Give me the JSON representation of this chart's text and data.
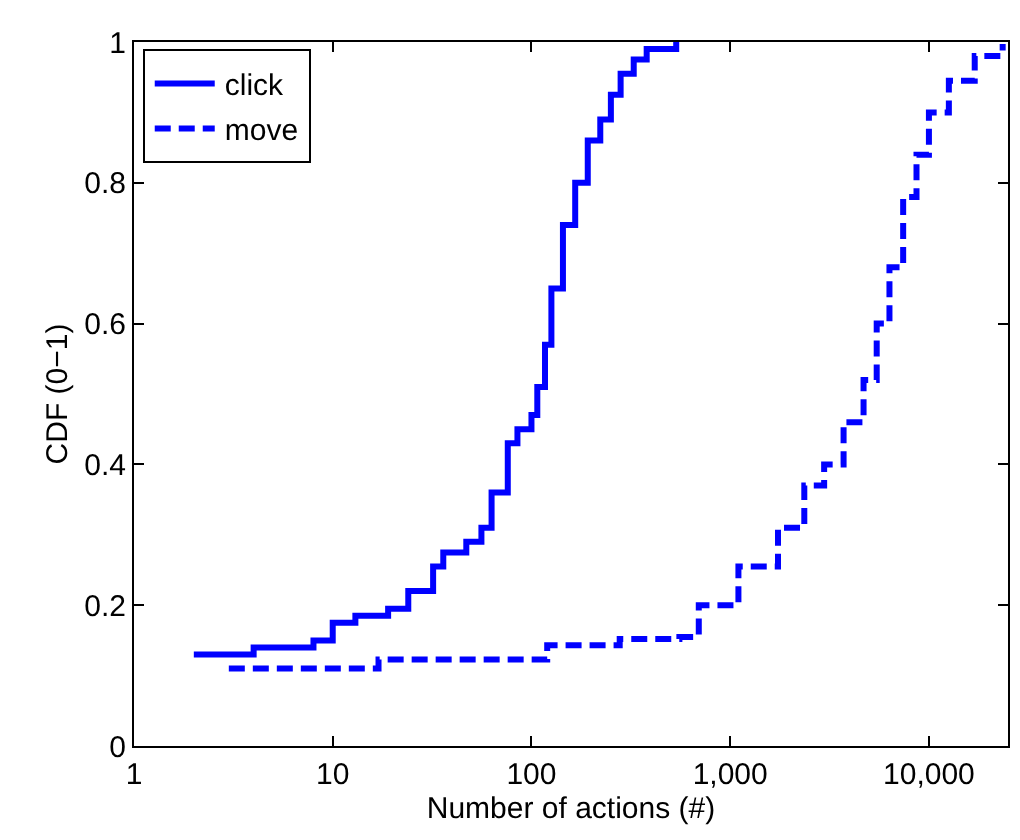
{
  "chart_data": {
    "type": "step",
    "xlabel": "Number of actions (#)",
    "ylabel": "CDF (0−1)",
    "log": "x",
    "xlim": [
      1,
      25000
    ],
    "ylim": [
      0,
      1
    ],
    "xticks": [
      1,
      10,
      100,
      {
        "value": 1000,
        "label": "1,000"
      },
      {
        "value": 10000,
        "label": "10,000"
      }
    ],
    "yticks": [
      0,
      0.2,
      0.4,
      0.6,
      0.8,
      1
    ],
    "legend": "top left",
    "marker": "none",
    "series": [
      {
        "name": "click",
        "color": "#0000ff",
        "line_style": "solid",
        "x": [
          2,
          4,
          8,
          10,
          13,
          19,
          24,
          32,
          36,
          47,
          56,
          63,
          76,
          85,
          100,
          107,
          117,
          126,
          144,
          166,
          192,
          222,
          251,
          281,
          327,
          380,
          535
        ],
        "values": [
          0.13,
          0.14,
          0.15,
          0.175,
          0.185,
          0.195,
          0.22,
          0.255,
          0.275,
          0.29,
          0.31,
          0.36,
          0.43,
          0.45,
          0.47,
          0.51,
          0.57,
          0.65,
          0.74,
          0.8,
          0.86,
          0.89,
          0.925,
          0.955,
          0.975,
          0.99,
          1.0
        ]
      },
      {
        "name": "move",
        "color": "#0000ff",
        "line_style": "dashed",
        "x": [
          3,
          17,
          120,
          278,
          555,
          695,
          1100,
          1740,
          2360,
          2970,
          3720,
          4690,
          5460,
          6330,
          7420,
          8660,
          10000,
          12600,
          17000,
          23500
        ],
        "values": [
          0.11,
          0.123,
          0.143,
          0.152,
          0.155,
          0.2,
          0.255,
          0.31,
          0.37,
          0.4,
          0.46,
          0.52,
          0.6,
          0.68,
          0.78,
          0.84,
          0.9,
          0.945,
          0.98,
          0.997
        ]
      }
    ]
  }
}
